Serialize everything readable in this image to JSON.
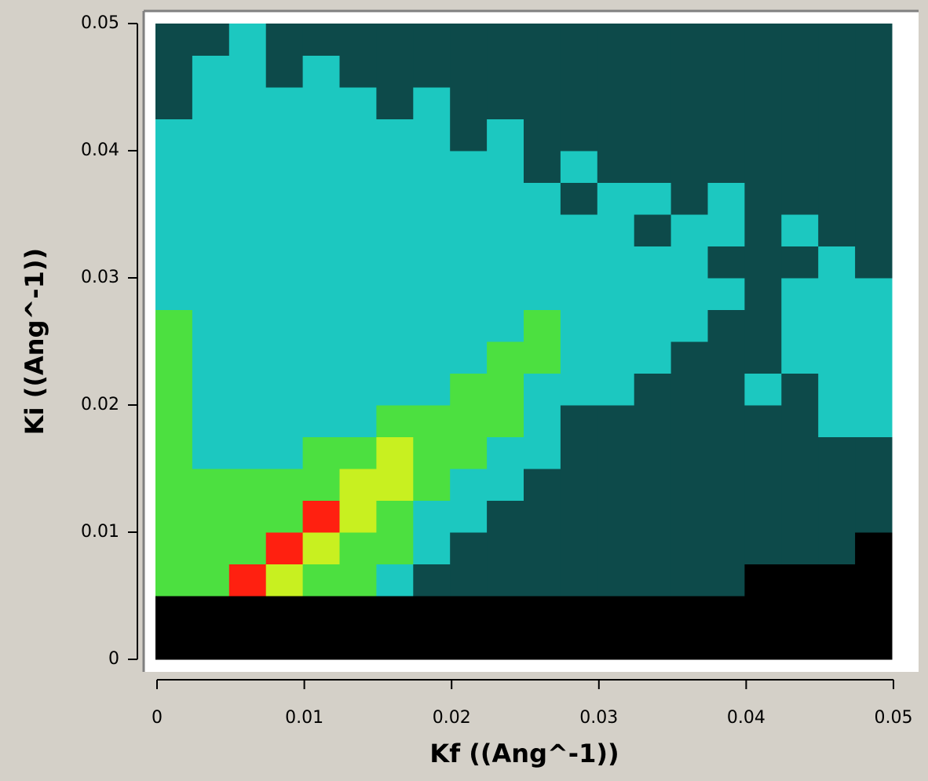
{
  "chart_data": {
    "type": "heatmap",
    "xlabel": "Kf ((Ang^-1))",
    "ylabel": "Ki ((Ang^-1))",
    "xlim": [
      0,
      0.05
    ],
    "ylim": [
      0,
      0.05
    ],
    "xticks": [
      0,
      0.01,
      0.02,
      0.03,
      0.04,
      0.05
    ],
    "yticks": [
      0,
      0.01,
      0.02,
      0.03,
      0.04,
      0.05
    ],
    "xbins": [
      0,
      0.0025,
      0.005,
      0.0075,
      0.01,
      0.0125,
      0.015,
      0.0175,
      0.02,
      0.0225,
      0.025,
      0.0275,
      0.03,
      0.0325,
      0.035,
      0.0375,
      0.04,
      0.0425,
      0.045,
      0.0475,
      0.05
    ],
    "ybins": [
      0,
      0.0025,
      0.005,
      0.0075,
      0.01,
      0.0125,
      0.015,
      0.0175,
      0.02,
      0.0225,
      0.025,
      0.0275,
      0.03,
      0.0325,
      0.035,
      0.0375,
      0.04,
      0.0425,
      0.045,
      0.0475,
      0.05
    ],
    "colorscale": [
      "#000000",
      "#0d4a4a",
      "#1cc8c0",
      "#4ce040",
      "#c8f020",
      "#ff2010"
    ],
    "z": [
      [
        0,
        0,
        0,
        0,
        0,
        0,
        0,
        0,
        0,
        0,
        0,
        0,
        0,
        0,
        0,
        0,
        0,
        0,
        0,
        0
      ],
      [
        0,
        0,
        0,
        0,
        0,
        0,
        0,
        0,
        0,
        0,
        0,
        0,
        0,
        0,
        0,
        0,
        0,
        0,
        0,
        0
      ],
      [
        3,
        3,
        5,
        4,
        3,
        3,
        2,
        1,
        1,
        1,
        1,
        1,
        1,
        1,
        1,
        1,
        0,
        0,
        0,
        0
      ],
      [
        3,
        3,
        3,
        5,
        4,
        3,
        3,
        2,
        1,
        1,
        1,
        1,
        1,
        1,
        1,
        1,
        1,
        1,
        1,
        0
      ],
      [
        3,
        3,
        3,
        3,
        5,
        4,
        3,
        2,
        2,
        1,
        1,
        1,
        1,
        1,
        1,
        1,
        1,
        1,
        1,
        1
      ],
      [
        3,
        3,
        3,
        3,
        3,
        4,
        4,
        3,
        2,
        2,
        1,
        1,
        1,
        1,
        1,
        1,
        1,
        1,
        1,
        1
      ],
      [
        3,
        2,
        2,
        2,
        3,
        3,
        4,
        3,
        3,
        2,
        2,
        1,
        1,
        1,
        1,
        1,
        1,
        1,
        1,
        1
      ],
      [
        3,
        2,
        2,
        2,
        2,
        2,
        3,
        3,
        3,
        3,
        2,
        1,
        1,
        1,
        1,
        1,
        1,
        1,
        2,
        2
      ],
      [
        3,
        2,
        2,
        2,
        2,
        2,
        2,
        2,
        3,
        3,
        2,
        2,
        2,
        1,
        1,
        1,
        2,
        1,
        2,
        2
      ],
      [
        3,
        2,
        2,
        2,
        2,
        2,
        2,
        2,
        2,
        3,
        3,
        2,
        2,
        2,
        1,
        1,
        1,
        2,
        2,
        2
      ],
      [
        3,
        2,
        2,
        2,
        2,
        2,
        2,
        2,
        2,
        2,
        3,
        2,
        2,
        2,
        2,
        1,
        1,
        2,
        2,
        2
      ],
      [
        2,
        2,
        2,
        2,
        2,
        2,
        2,
        2,
        2,
        2,
        2,
        2,
        2,
        2,
        2,
        2,
        1,
        2,
        2,
        2
      ],
      [
        2,
        2,
        2,
        2,
        2,
        2,
        2,
        2,
        2,
        2,
        2,
        2,
        2,
        2,
        2,
        1,
        1,
        1,
        2,
        1
      ],
      [
        2,
        2,
        2,
        2,
        2,
        2,
        2,
        2,
        2,
        2,
        2,
        2,
        2,
        1,
        2,
        2,
        1,
        2,
        1,
        1
      ],
      [
        2,
        2,
        2,
        2,
        2,
        2,
        2,
        2,
        2,
        2,
        2,
        1,
        2,
        2,
        1,
        2,
        1,
        1,
        1,
        1
      ],
      [
        2,
        2,
        2,
        2,
        2,
        2,
        2,
        2,
        2,
        2,
        1,
        2,
        1,
        1,
        1,
        1,
        1,
        1,
        1,
        1
      ],
      [
        2,
        2,
        2,
        2,
        2,
        2,
        2,
        2,
        1,
        2,
        1,
        1,
        1,
        1,
        1,
        1,
        1,
        1,
        1,
        1
      ],
      [
        1,
        2,
        2,
        2,
        2,
        2,
        1,
        2,
        1,
        1,
        1,
        1,
        1,
        1,
        1,
        1,
        1,
        1,
        1,
        1
      ],
      [
        1,
        2,
        2,
        1,
        2,
        1,
        1,
        1,
        1,
        1,
        1,
        1,
        1,
        1,
        1,
        1,
        1,
        1,
        1,
        1
      ],
      [
        1,
        1,
        2,
        1,
        1,
        1,
        1,
        1,
        1,
        1,
        1,
        1,
        1,
        1,
        1,
        1,
        1,
        1,
        1,
        1
      ]
    ]
  }
}
